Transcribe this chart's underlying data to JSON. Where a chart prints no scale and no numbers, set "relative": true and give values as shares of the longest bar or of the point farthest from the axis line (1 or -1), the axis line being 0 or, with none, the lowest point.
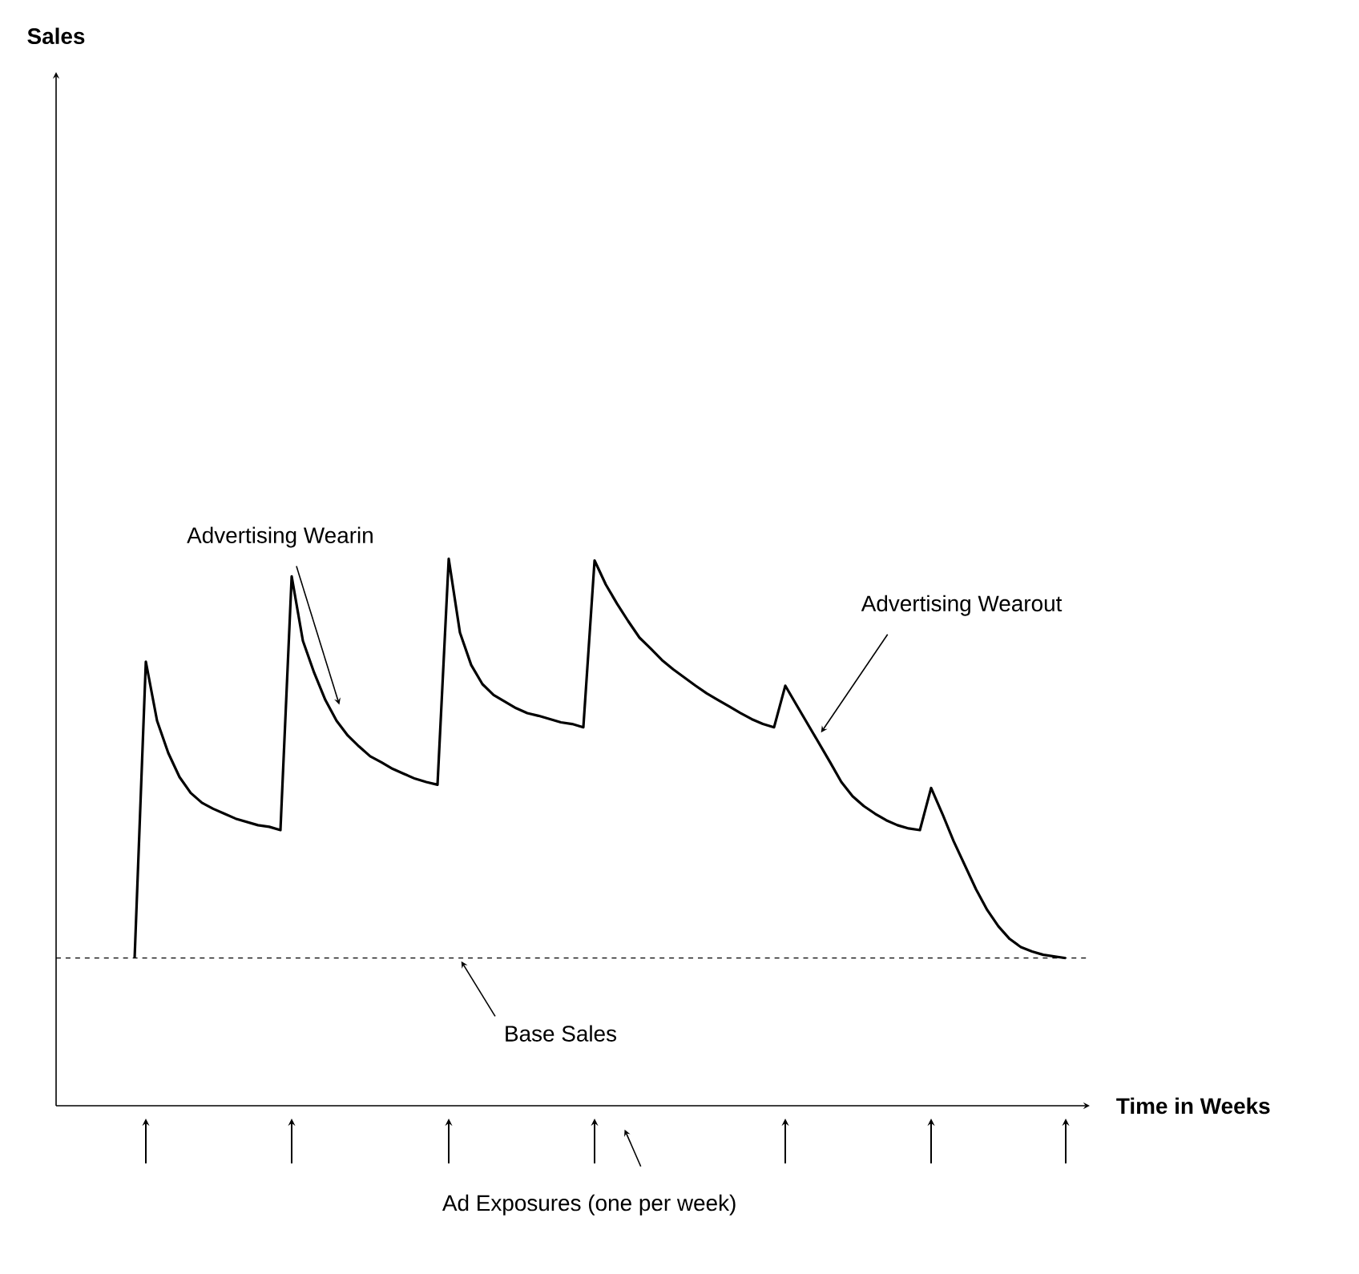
{
  "chart_data": {
    "type": "line",
    "relative": true,
    "xlabel": "Time in Weeks",
    "color": "#000000",
    "line_style": "solid",
    "categories": [
      null,
      null,
      null,
      null,
      null,
      null,
      null,
      null,
      null,
      null,
      null,
      null,
      null,
      null,
      null,
      null,
      null,
      null,
      null,
      null,
      null,
      null,
      null,
      null,
      null,
      null,
      null,
      null,
      null,
      null,
      null,
      null,
      null,
      null,
      null,
      null,
      null,
      null,
      null,
      null,
      null,
      null,
      null,
      null,
      null,
      null,
      null,
      null,
      null,
      null,
      null,
      null,
      null,
      null,
      null,
      null,
      null,
      null,
      null,
      null,
      null,
      null,
      null,
      null,
      null,
      null,
      null,
      null,
      null,
      null,
      null,
      null,
      null,
      null,
      null,
      null,
      null,
      null,
      null,
      null,
      null,
      null,
      null,
      null
    ],
    "values": [
      0.27,
      0.812,
      0.704,
      0.645,
      0.601,
      0.572,
      0.554,
      0.543,
      0.534,
      0.525,
      0.519,
      0.513,
      0.51,
      0.504,
      0.968,
      0.85,
      0.792,
      0.742,
      0.704,
      0.677,
      0.657,
      0.639,
      0.628,
      0.616,
      0.607,
      0.598,
      0.592,
      0.587,
      1.0,
      0.865,
      0.806,
      0.771,
      0.751,
      0.739,
      0.727,
      0.718,
      0.713,
      0.707,
      0.701,
      0.698,
      0.692,
      0.997,
      0.953,
      0.918,
      0.886,
      0.856,
      0.836,
      0.815,
      0.798,
      0.783,
      0.768,
      0.754,
      0.742,
      0.73,
      0.718,
      0.707,
      0.698,
      0.692,
      0.768,
      0.733,
      0.698,
      0.663,
      0.628,
      0.592,
      0.566,
      0.548,
      0.534,
      0.522,
      0.513,
      0.507,
      0.504,
      0.581,
      0.534,
      0.484,
      0.44,
      0.396,
      0.358,
      0.328,
      0.305,
      0.29,
      0.282,
      0.276,
      0.273,
      0.27
    ],
    "ref_lines": [
      {
        "axis": "y",
        "value": 0.27,
        "label": "Base Sales",
        "line_style": "dashed"
      }
    ],
    "annotations": [
      "Advertising Wearin",
      "Advertising Wearout",
      "Ad Exposures (one per week)",
      "Sales"
    ]
  }
}
